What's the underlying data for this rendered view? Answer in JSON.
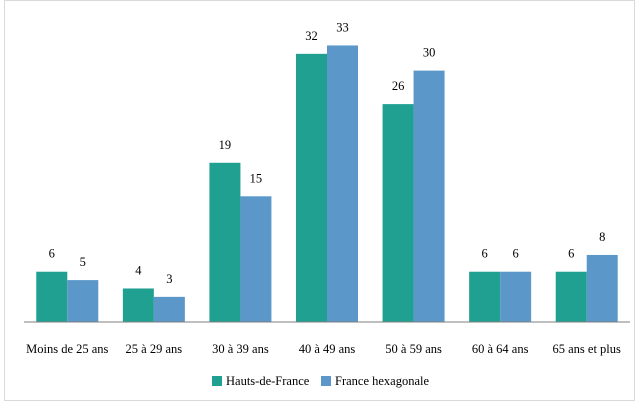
{
  "chart_data": {
    "type": "bar",
    "categories": [
      "Moins de 25 ans",
      "25 à 29 ans",
      "30 à 39 ans",
      "40 à 49 ans",
      "50 à 59 ans",
      "60 à 64 ans",
      "65 ans et plus"
    ],
    "series": [
      {
        "name": "Hauts-de-France",
        "values": [
          6,
          4,
          19,
          32,
          26,
          6,
          6
        ],
        "color": "#1fa090"
      },
      {
        "name": "France hexagonale",
        "values": [
          5,
          3,
          15,
          33,
          30,
          6,
          8
        ],
        "color": "#5b97c9"
      }
    ],
    "ylim": [
      0,
      35
    ],
    "grid": false,
    "legend_position": "bottom",
    "data_labels": true,
    "axis_line_color": "#7f7f7f"
  }
}
